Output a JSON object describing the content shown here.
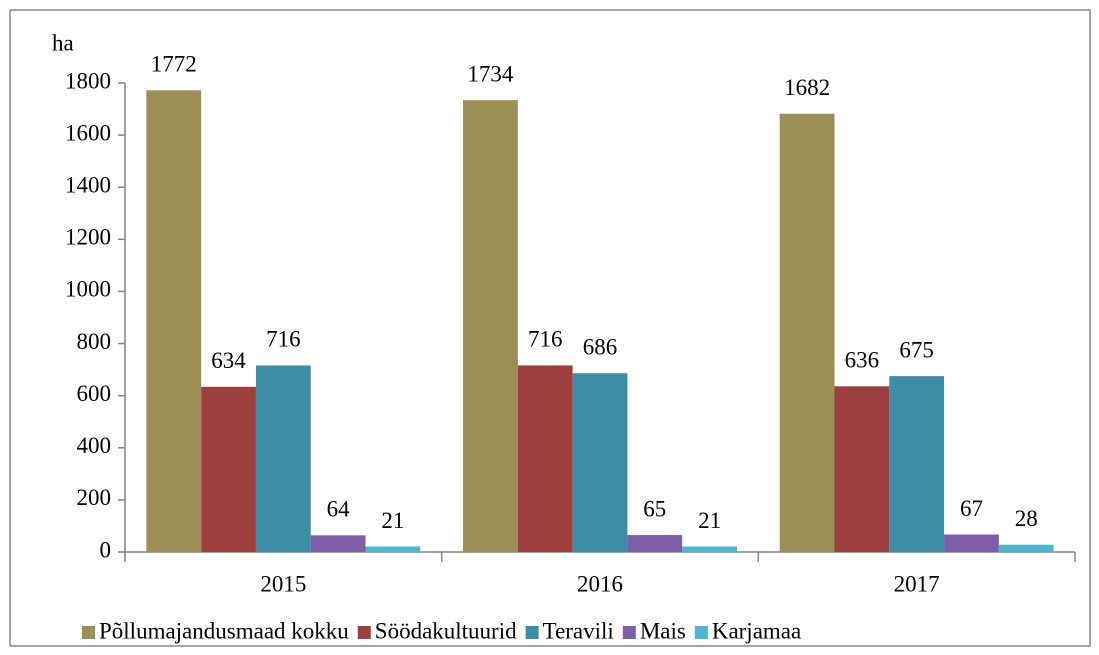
{
  "chart_data": {
    "type": "bar",
    "y_label": "ha",
    "categories": [
      "2015",
      "2016",
      "2017"
    ],
    "series": [
      {
        "name": "Põllumajandusmaad kokku",
        "color": "#9c8f55",
        "values": [
          1772,
          1734,
          1682
        ]
      },
      {
        "name": "Söödakultuurid",
        "color": "#9e3f3d",
        "values": [
          634,
          716,
          636
        ]
      },
      {
        "name": "Teravili",
        "color": "#3b8ea3",
        "values": [
          716,
          686,
          675
        ]
      },
      {
        "name": "Mais",
        "color": "#7e5ea8",
        "values": [
          64,
          65,
          67
        ]
      },
      {
        "name": "Karjamaa",
        "color": "#4bb6d1",
        "values": [
          21,
          21,
          28
        ]
      }
    ],
    "ylim": [
      0,
      1800
    ],
    "yticks": [
      0,
      200,
      400,
      600,
      800,
      1000,
      1200,
      1400,
      1600,
      1800
    ],
    "legend": "bottom"
  }
}
